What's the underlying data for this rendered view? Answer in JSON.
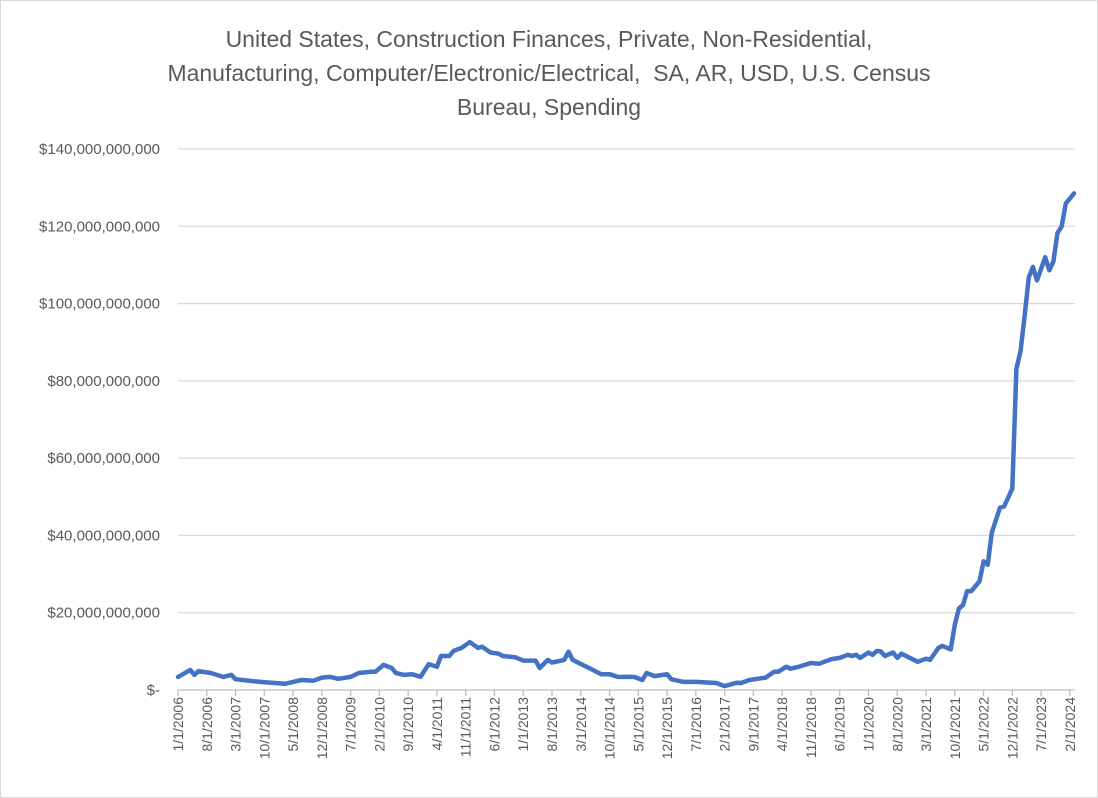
{
  "chart_data": {
    "type": "line",
    "title_lines": [
      "United States, Construction Finances, Private, Non-Residential,",
      "Manufacturing, Computer/Electronic/Electrical,  SA, AR, USD, U.S. Census",
      "Bureau, Spending"
    ],
    "xlabel": "",
    "ylabel": "",
    "ylim": [
      0,
      140000000000
    ],
    "grid": true,
    "legend": "none",
    "line_color": "#4472C4",
    "y_tick_values": [
      0,
      20000000000,
      40000000000,
      60000000000,
      80000000000,
      100000000000,
      120000000000,
      140000000000
    ],
    "y_tick_labels": [
      "$-",
      "$20,000,000,000",
      "$40,000,000,000",
      "$60,000,000,000",
      "$80,000,000,000",
      "$100,000,000,000",
      "$120,000,000,000",
      "$140,000,000,000"
    ],
    "x_tick_labels": [
      "1/1/2006",
      "8/1/2006",
      "3/1/2007",
      "10/1/2007",
      "5/1/2008",
      "12/1/2008",
      "7/1/2009",
      "2/1/2010",
      "9/1/2010",
      "4/1/2011",
      "11/1/2011",
      "6/1/2012",
      "1/1/2013",
      "8/1/2013",
      "3/1/2014",
      "10/1/2014",
      "5/1/2015",
      "12/1/2015",
      "7/1/2016",
      "2/1/2017",
      "9/1/2017",
      "4/1/2018",
      "11/1/2018",
      "6/1/2019",
      "1/1/2020",
      "8/1/2020",
      "3/1/2021",
      "10/1/2021",
      "5/1/2022",
      "12/1/2022",
      "7/1/2023",
      "2/1/2024"
    ],
    "x": [
      "2006-01",
      "2006-04",
      "2006-05",
      "2006-06",
      "2006-09",
      "2006-12",
      "2007-02",
      "2007-03",
      "2007-09",
      "2008-03",
      "2008-05",
      "2008-07",
      "2008-10",
      "2008-12",
      "2009-02",
      "2009-04",
      "2009-07",
      "2009-09",
      "2009-12",
      "2010-01",
      "2010-03",
      "2010-05",
      "2010-06",
      "2010-08",
      "2010-10",
      "2010-12",
      "2011-02",
      "2011-04",
      "2011-05",
      "2011-07",
      "2011-08",
      "2011-10",
      "2011-12",
      "2012-02",
      "2012-03",
      "2012-05",
      "2012-07",
      "2012-08",
      "2012-11",
      "2013-01",
      "2013-04",
      "2013-05",
      "2013-07",
      "2013-08",
      "2013-11",
      "2013-12",
      "2014-01",
      "2014-05",
      "2014-08",
      "2014-10",
      "2014-12",
      "2015-04",
      "2015-06",
      "2015-07",
      "2015-09",
      "2015-12",
      "2016-01",
      "2016-04",
      "2016-07",
      "2016-12",
      "2017-02",
      "2017-05",
      "2017-06",
      "2017-08",
      "2017-12",
      "2018-02",
      "2018-03",
      "2018-05",
      "2018-06",
      "2018-08",
      "2018-11",
      "2019-01",
      "2019-04",
      "2019-06",
      "2019-08",
      "2019-09",
      "2019-10",
      "2019-11",
      "2020-01",
      "2020-02",
      "2020-03",
      "2020-04",
      "2020-05",
      "2020-07",
      "2020-08",
      "2020-09",
      "2021-01",
      "2021-03",
      "2021-04",
      "2021-06",
      "2021-07",
      "2021-09",
      "2021-10",
      "2021-11",
      "2021-12",
      "2022-01",
      "2022-02",
      "2022-04",
      "2022-05",
      "2022-06",
      "2022-07",
      "2022-09",
      "2022-10",
      "2022-12",
      "2023-01",
      "2023-02",
      "2023-03",
      "2023-04",
      "2023-05",
      "2023-06",
      "2023-08",
      "2023-09",
      "2023-10",
      "2023-11",
      "2023-12",
      "2024-01",
      "2024-03"
    ],
    "values": [
      3400000000.0,
      5200000000.0,
      3900000000.0,
      4900000000.0,
      4400000000.0,
      3400000000.0,
      3900000000.0,
      2800000000.0,
      2100000000.0,
      1600000000.0,
      2100000000.0,
      2600000000.0,
      2400000000.0,
      3200000000.0,
      3400000000.0,
      2900000000.0,
      3400000000.0,
      4400000000.0,
      4700000000.0,
      4700000000.0,
      6500000000.0,
      5700000000.0,
      4400000000.0,
      3900000000.0,
      4100000000.0,
      3400000000.0,
      6700000000.0,
      6000000000.0,
      8800000000.0,
      8800000000.0,
      10100000000.0,
      10900000000.0,
      12400000000.0,
      10900000000.0,
      11200000000.0,
      9700000000.0,
      9400000000.0,
      8800000000.0,
      8500000000.0,
      7600000000.0,
      7600000000.0,
      5700000000.0,
      7800000000.0,
      7100000000.0,
      7800000000.0,
      9900000000.0,
      7800000000.0,
      5700000000.0,
      4100000000.0,
      4100000000.0,
      3400000000.0,
      3400000000.0,
      2600000000.0,
      4400000000.0,
      3600000000.0,
      4100000000.0,
      2800000000.0,
      2100000000.0,
      2100000000.0,
      1800000000.0,
      1000000000.0,
      1900000000.0,
      1800000000.0,
      2600000000.0,
      3200000000.0,
      4700000000.0,
      4700000000.0,
      6000000000.0,
      5500000000.0,
      6000000000.0,
      7000000000.0,
      6800000000.0,
      8000000000.0,
      8300000000.0,
      9100000000.0,
      8800000000.0,
      9100000000.0,
      8300000000.0,
      9700000000.0,
      9100000000.0,
      10100000000.0,
      10000000000.0,
      8800000000.0,
      9700000000.0,
      8300000000.0,
      9400000000.0,
      7300000000.0,
      8100000000.0,
      7800000000.0,
      10900000000.0,
      11400000000.0,
      10500000000.0,
      16900000000.0,
      21100000000.0,
      22000000000.0,
      25600000000.0,
      25600000000.0,
      28100000000.0,
      33300000000.0,
      32400000000.0,
      40700000000.0,
      47200000000.0,
      47500000000.0,
      52100000000.0,
      83100000000.0,
      87800000000.0,
      97000000000.0,
      106800000000.0,
      109500000000.0,
      106000000000.0,
      112000000000.0,
      108600000000.0,
      110900000000.0,
      118300000000.0,
      120000000000.0,
      125900000000.0,
      128500000000.0
    ]
  }
}
